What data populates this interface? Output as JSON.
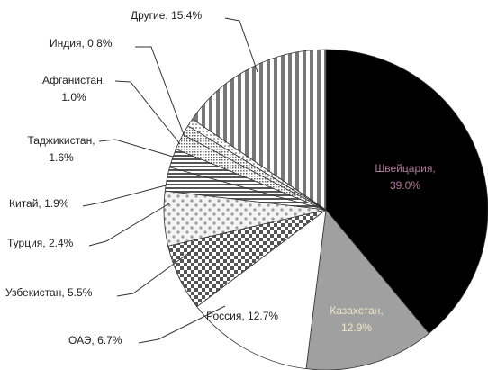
{
  "chart_data": {
    "type": "pie",
    "title": "",
    "unit": "%",
    "slices": [
      {
        "label": "Швейцария",
        "value": 39.0,
        "value_text": "39.0%",
        "pattern": "solid-black"
      },
      {
        "label": "Казахстан",
        "value": 12.9,
        "value_text": "12.9%",
        "pattern": "solid-grey"
      },
      {
        "label": "Россия",
        "value": 12.7,
        "value_text": "12.7%",
        "pattern": "white"
      },
      {
        "label": "ОАЭ",
        "value": 6.7,
        "value_text": "6.7%",
        "pattern": "checker"
      },
      {
        "label": "Узбекистан",
        "value": 5.5,
        "value_text": "5.5%",
        "pattern": "dots"
      },
      {
        "label": "Турция",
        "value": 2.4,
        "value_text": "2.4%",
        "pattern": "horizontal-lines"
      },
      {
        "label": "Китай",
        "value": 1.9,
        "value_text": "1.9%",
        "pattern": "horizontal-lines"
      },
      {
        "label": "Таджикистан",
        "value": 1.6,
        "value_text": "1.6%",
        "pattern": "dots-fine"
      },
      {
        "label": "Афганистан",
        "value": 1.0,
        "value_text": "1.0%",
        "pattern": "dots-fine"
      },
      {
        "label": "Индия",
        "value": 0.8,
        "value_text": "0.8%",
        "pattern": "dotted"
      },
      {
        "label": "Другие",
        "value": 15.4,
        "value_text": "15.4%",
        "pattern": "vertical-lines"
      }
    ],
    "colors": {
      "outline": "#333333",
      "black": "#000000",
      "grey": "#a0a0a0",
      "white": "#ffffff",
      "inside_dark_text": "#b57a9a",
      "inside_grey_text": "#f0e6c8"
    }
  }
}
